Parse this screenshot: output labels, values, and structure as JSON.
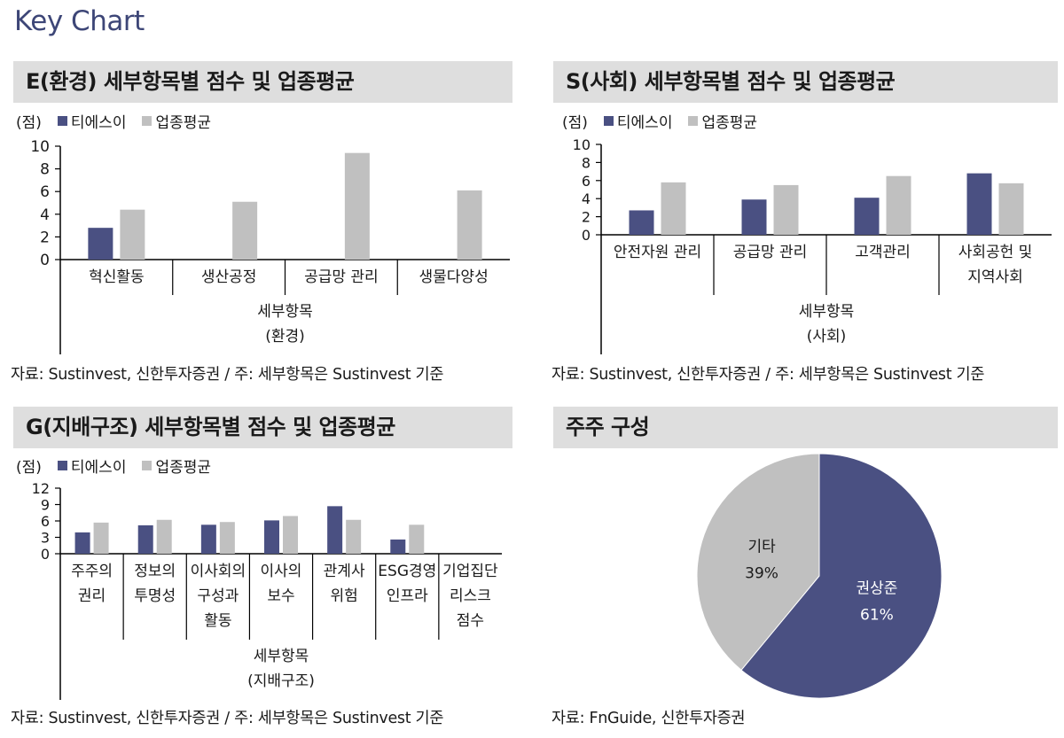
{
  "page": {
    "title": "Key Chart"
  },
  "colors": {
    "company": "#4a5082",
    "industry": "#c0c0c0",
    "header_bg": "#dedede",
    "axis": "#000000"
  },
  "legend": {
    "unit": "(점)",
    "company": "티에스이",
    "industry": "업종평균"
  },
  "panels": {
    "env": {
      "title": "E(환경) 세부항목별 점수 및 업종평균",
      "source": "자료: Sustinvest, 신한투자증권 / 주: 세부항목은 Sustinvest 기준"
    },
    "social": {
      "title": "S(사회) 세부항목별 점수 및 업종평균",
      "source": "자료: Sustinvest, 신한투자증권 / 주: 세부항목은 Sustinvest 기준"
    },
    "gov": {
      "title": "G(지배구조) 세부항목별 점수 및 업종평균",
      "source": "자료: Sustinvest, 신한투자증권 / 주: 세부항목은 Sustinvest 기준"
    },
    "holders": {
      "title": "주주 구성",
      "source": "자료: FnGuide, 신한투자증권"
    }
  },
  "chart_data": [
    {
      "id": "env",
      "type": "bar",
      "title": "E(환경) 세부항목별 점수 및 업종평균",
      "categories": [
        [
          "혁신활동"
        ],
        [
          "생산공정"
        ],
        [
          "공급망 관리"
        ],
        [
          "생물다양성"
        ]
      ],
      "series": [
        {
          "name": "티에스이",
          "values": [
            2.8,
            null,
            null,
            null
          ]
        },
        {
          "name": "업종평균",
          "values": [
            4.4,
            5.1,
            9.4,
            6.1
          ]
        }
      ],
      "yticks": [
        0,
        2,
        4,
        6,
        8,
        10
      ],
      "ylim": [
        0,
        10
      ],
      "xlabel": "세부항목",
      "xlabel2": "(환경)",
      "ylabel": "(점)"
    },
    {
      "id": "social",
      "type": "bar",
      "title": "S(사회) 세부항목별 점수 및 업종평균",
      "categories": [
        [
          "안전자원 관리"
        ],
        [
          "공급망 관리"
        ],
        [
          "고객관리"
        ],
        [
          "사회공헌 및",
          "지역사회"
        ]
      ],
      "series": [
        {
          "name": "티에스이",
          "values": [
            2.7,
            3.9,
            4.1,
            6.8
          ]
        },
        {
          "name": "업종평균",
          "values": [
            5.8,
            5.5,
            6.5,
            5.7
          ]
        }
      ],
      "yticks": [
        0,
        2,
        4,
        6,
        8,
        10
      ],
      "ylim": [
        0,
        10
      ],
      "xlabel": "세부항목",
      "xlabel2": "(사회)",
      "ylabel": "(점)"
    },
    {
      "id": "gov",
      "type": "bar",
      "title": "G(지배구조) 세부항목별 점수 및 업종평균",
      "categories": [
        [
          "주주의",
          "권리"
        ],
        [
          "정보의",
          "투명성"
        ],
        [
          "이사회의",
          "구성과",
          "활동"
        ],
        [
          "이사의",
          "보수"
        ],
        [
          "관계사",
          "위험"
        ],
        [
          "ESG경영",
          "인프라"
        ],
        [
          "기업집단",
          "리스크",
          "점수"
        ]
      ],
      "series": [
        {
          "name": "티에스이",
          "values": [
            3.9,
            5.2,
            5.3,
            6.1,
            8.7,
            2.6,
            null
          ]
        },
        {
          "name": "업종평균",
          "values": [
            5.7,
            6.2,
            5.8,
            6.9,
            6.2,
            5.3,
            null
          ]
        }
      ],
      "yticks": [
        0,
        3,
        6,
        9,
        12
      ],
      "ylim": [
        0,
        12
      ],
      "xlabel": "세부항목",
      "xlabel2": "(지배구조)",
      "ylabel": "(점)"
    },
    {
      "id": "holders",
      "type": "pie",
      "title": "주주 구성",
      "slices": [
        {
          "label": "권상준",
          "value": 61,
          "display": "61%",
          "color": "#4a5082"
        },
        {
          "label": "기타",
          "value": 39,
          "display": "39%",
          "color": "#c0c0c0"
        }
      ]
    }
  ]
}
